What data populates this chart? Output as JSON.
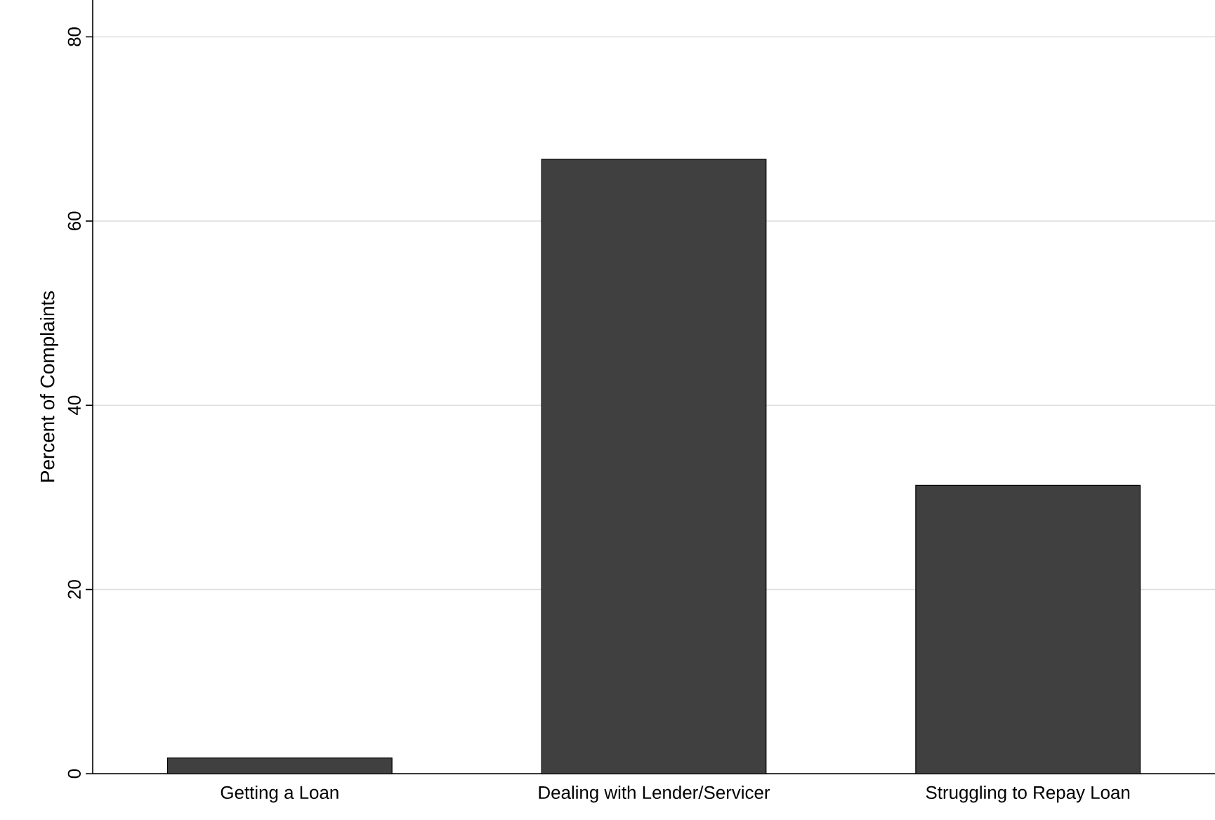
{
  "chart_data": {
    "type": "bar",
    "ylabel": "Percent of Complaints",
    "categories": [
      "Getting a Loan",
      "Dealing with Lender/Servicer",
      "Struggling to Repay Loan"
    ],
    "values": [
      1.7,
      66.7,
      31.3
    ],
    "color": "#404040",
    "ylim": [
      0,
      84
    ],
    "yticks": [
      0,
      20,
      40,
      60,
      80
    ],
    "grid": "y"
  }
}
